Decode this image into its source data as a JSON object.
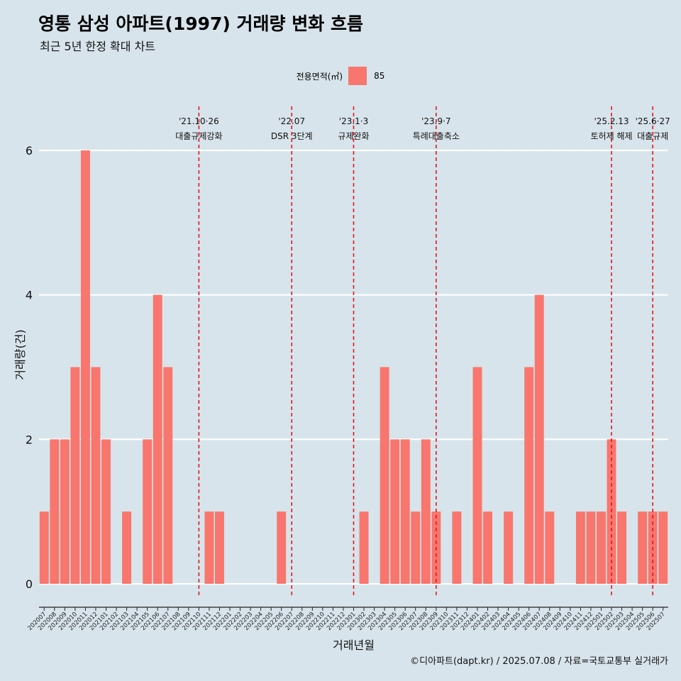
{
  "title": "영통 삼성 아파트(1997) 거래량 변화 흐름",
  "subtitle": "최근 5년 한정 확대 차트",
  "legend": {
    "title": "전용면적(㎡)",
    "items": [
      {
        "label": "85",
        "color": "#f8766d"
      }
    ]
  },
  "caption": "©디아파트(dapt.kr) / 2025.07.08 / 자료=국토교통부 실거래가",
  "colors": {
    "background": "#d7e4eb",
    "bar": "#f8766d",
    "event_line": "#e3161c",
    "grid": "#ffffff"
  },
  "chart_data": {
    "type": "bar",
    "xlabel": "거래년월",
    "ylabel": "거래량(건)",
    "ylim": [
      0,
      6
    ],
    "yticks": [
      0,
      2,
      4,
      6
    ],
    "grid": "horizontal major lines only",
    "legend_position": "top",
    "categories": [
      "202007",
      "202008",
      "202009",
      "202010",
      "202011",
      "202012",
      "202101",
      "202102",
      "202103",
      "202104",
      "202105",
      "202106",
      "202107",
      "202108",
      "202109",
      "202110",
      "202111",
      "202112",
      "202201",
      "202202",
      "202203",
      "202204",
      "202205",
      "202206",
      "202207",
      "202208",
      "202209",
      "202210",
      "202211",
      "202212",
      "202301",
      "202302",
      "202303",
      "202304",
      "202305",
      "202306",
      "202307",
      "202308",
      "202309",
      "202310",
      "202311",
      "202312",
      "202401",
      "202402",
      "202403",
      "202404",
      "202405",
      "202406",
      "202407",
      "202408",
      "202409",
      "202410",
      "202411",
      "202412",
      "202501",
      "202502",
      "202503",
      "202504",
      "202505",
      "202506",
      "202507"
    ],
    "series": [
      {
        "name": "85",
        "values": [
          1,
          2,
          2,
          3,
          6,
          3,
          2,
          0,
          1,
          0,
          2,
          4,
          3,
          0,
          0,
          0,
          1,
          1,
          0,
          0,
          0,
          0,
          0,
          1,
          0,
          0,
          0,
          0,
          0,
          0,
          0,
          1,
          0,
          3,
          2,
          2,
          1,
          2,
          1,
          0,
          1,
          0,
          3,
          1,
          0,
          1,
          0,
          3,
          4,
          1,
          0,
          0,
          1,
          1,
          1,
          2,
          1,
          0,
          1,
          1,
          1
        ]
      }
    ],
    "annotations": [
      {
        "date_label": "'21.10·26",
        "text": "대출규제강화",
        "at": "202110"
      },
      {
        "date_label": "'22.07",
        "text": "DSR 3단계",
        "at": "202207"
      },
      {
        "date_label": "'23.1·3",
        "text": "규제완화",
        "at": "202301"
      },
      {
        "date_label": "'23.9·7",
        "text": "특례대출축소",
        "at": "202309"
      },
      {
        "date_label": "'25.2.13",
        "text": "토허제 해제",
        "at": "202502"
      },
      {
        "date_label": "'25.6·27",
        "text": "대출규제",
        "at": "202506"
      }
    ]
  }
}
